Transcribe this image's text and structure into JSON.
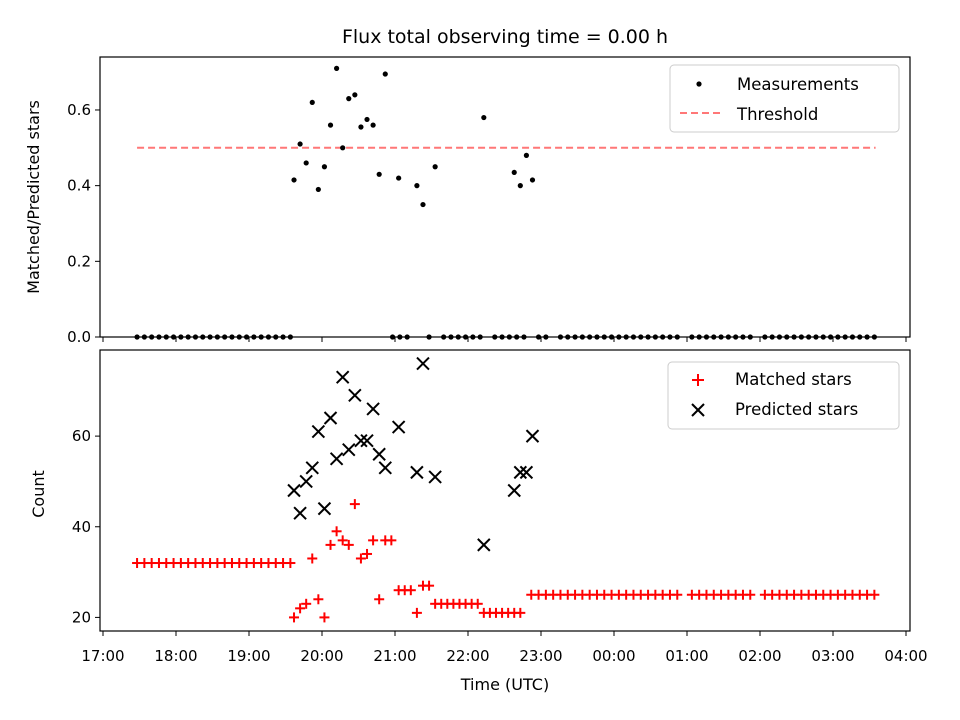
{
  "chart_data": {
    "title": "Flux total observing time = 0.00 h",
    "xlabel": "Time (UTC)",
    "x_tick_labels": [
      "17:00",
      "18:00",
      "19:00",
      "20:00",
      "21:00",
      "22:00",
      "23:00",
      "00:00",
      "01:00",
      "02:00",
      "03:00",
      "04:00"
    ],
    "colors": {
      "measurements": "#000000",
      "threshold": "#ff7777",
      "matched": "#ff0000",
      "predicted": "#000000"
    },
    "top": {
      "type": "scatter",
      "ylabel": "Matched/Predicted stars",
      "ylim": [
        0,
        0.74
      ],
      "y_ticks": [
        "0.0",
        "0.2",
        "0.4",
        "0.6"
      ],
      "legend": {
        "placement": "top-right",
        "entries": [
          "Measurements",
          "Threshold"
        ]
      },
      "threshold": {
        "value": 0.5,
        "x_start": "17:28",
        "x_end": "03:35"
      },
      "zero_times": [
        "17:28",
        "17:34",
        "17:40",
        "17:46",
        "17:52",
        "17:58",
        "18:04",
        "18:10",
        "18:16",
        "18:22",
        "18:28",
        "18:34",
        "18:40",
        "18:46",
        "18:52",
        "18:58",
        "19:04",
        "19:10",
        "19:16",
        "19:22",
        "19:28",
        "19:34",
        "20:58",
        "21:04",
        "21:10",
        "21:28",
        "21:40",
        "21:46",
        "21:52",
        "21:58",
        "22:04",
        "22:10",
        "22:22",
        "22:28",
        "22:34",
        "22:40",
        "22:46",
        "22:58",
        "23:04",
        "23:16",
        "23:22",
        "23:28",
        "23:34",
        "23:40",
        "23:46",
        "23:52",
        "23:58",
        "00:04",
        "00:10",
        "00:16",
        "00:22",
        "00:28",
        "00:34",
        "00:40",
        "00:46",
        "00:52",
        "01:04",
        "01:10",
        "01:16",
        "01:22",
        "01:28",
        "01:34",
        "01:40",
        "01:46",
        "01:52",
        "02:04",
        "02:10",
        "02:16",
        "02:22",
        "02:28",
        "02:34",
        "02:40",
        "02:46",
        "02:52",
        "02:58",
        "03:04",
        "03:10",
        "03:16",
        "03:22",
        "03:28",
        "03:34"
      ],
      "points": [
        {
          "t": "19:37",
          "v": 0.415
        },
        {
          "t": "19:42",
          "v": 0.51
        },
        {
          "t": "19:47",
          "v": 0.46
        },
        {
          "t": "19:52",
          "v": 0.62
        },
        {
          "t": "19:57",
          "v": 0.39
        },
        {
          "t": "20:02",
          "v": 0.45
        },
        {
          "t": "20:07",
          "v": 0.56
        },
        {
          "t": "20:12",
          "v": 0.71
        },
        {
          "t": "20:17",
          "v": 0.5
        },
        {
          "t": "20:22",
          "v": 0.63
        },
        {
          "t": "20:27",
          "v": 0.64
        },
        {
          "t": "20:32",
          "v": 0.555
        },
        {
          "t": "20:37",
          "v": 0.575
        },
        {
          "t": "20:42",
          "v": 0.56
        },
        {
          "t": "20:47",
          "v": 0.43
        },
        {
          "t": "20:52",
          "v": 0.695
        },
        {
          "t": "21:03",
          "v": 0.42
        },
        {
          "t": "21:18",
          "v": 0.4
        },
        {
          "t": "21:23",
          "v": 0.35
        },
        {
          "t": "21:33",
          "v": 0.45
        },
        {
          "t": "22:13",
          "v": 0.58
        },
        {
          "t": "22:38",
          "v": 0.435
        },
        {
          "t": "22:43",
          "v": 0.4
        },
        {
          "t": "22:48",
          "v": 0.48
        },
        {
          "t": "22:53",
          "v": 0.415
        }
      ]
    },
    "bottom": {
      "type": "scatter",
      "ylabel": "Count",
      "ylim": [
        17,
        79
      ],
      "y_ticks": [
        "20",
        "40",
        "60"
      ],
      "legend": {
        "placement": "top-right",
        "entries": [
          "Matched stars",
          "Predicted stars"
        ]
      },
      "predicted": [
        {
          "t": "19:37",
          "v": 48
        },
        {
          "t": "19:42",
          "v": 43
        },
        {
          "t": "19:47",
          "v": 50
        },
        {
          "t": "19:52",
          "v": 53
        },
        {
          "t": "19:57",
          "v": 61
        },
        {
          "t": "20:02",
          "v": 44
        },
        {
          "t": "20:07",
          "v": 64
        },
        {
          "t": "20:12",
          "v": 55
        },
        {
          "t": "20:17",
          "v": 73
        },
        {
          "t": "20:22",
          "v": 57
        },
        {
          "t": "20:27",
          "v": 69
        },
        {
          "t": "20:32",
          "v": 59
        },
        {
          "t": "20:37",
          "v": 59
        },
        {
          "t": "20:42",
          "v": 66
        },
        {
          "t": "20:47",
          "v": 56
        },
        {
          "t": "20:52",
          "v": 53
        },
        {
          "t": "21:03",
          "v": 62
        },
        {
          "t": "21:18",
          "v": 52
        },
        {
          "t": "21:23",
          "v": 76
        },
        {
          "t": "21:33",
          "v": 51
        },
        {
          "t": "22:13",
          "v": 36
        },
        {
          "t": "22:38",
          "v": 48
        },
        {
          "t": "22:43",
          "v": 52
        },
        {
          "t": "22:48",
          "v": 52
        },
        {
          "t": "22:53",
          "v": 60
        }
      ],
      "matched_points": [
        {
          "t": "19:37",
          "v": 20
        },
        {
          "t": "19:42",
          "v": 22
        },
        {
          "t": "19:47",
          "v": 23
        },
        {
          "t": "19:52",
          "v": 33
        },
        {
          "t": "19:57",
          "v": 24
        },
        {
          "t": "20:02",
          "v": 20
        },
        {
          "t": "20:07",
          "v": 36
        },
        {
          "t": "20:12",
          "v": 39
        },
        {
          "t": "20:17",
          "v": 37
        },
        {
          "t": "20:22",
          "v": 36
        },
        {
          "t": "20:27",
          "v": 45
        },
        {
          "t": "20:32",
          "v": 33
        },
        {
          "t": "20:37",
          "v": 34
        },
        {
          "t": "20:42",
          "v": 37
        },
        {
          "t": "20:47",
          "v": 24
        },
        {
          "t": "20:52",
          "v": 37
        },
        {
          "t": "20:57",
          "v": 37
        },
        {
          "t": "21:03",
          "v": 26
        },
        {
          "t": "21:08",
          "v": 26
        },
        {
          "t": "21:13",
          "v": 26
        },
        {
          "t": "21:18",
          "v": 21
        },
        {
          "t": "21:23",
          "v": 27
        },
        {
          "t": "21:28",
          "v": 27
        },
        {
          "t": "21:33",
          "v": 23
        },
        {
          "t": "21:38",
          "v": 23
        },
        {
          "t": "21:43",
          "v": 23
        },
        {
          "t": "21:48",
          "v": 23
        },
        {
          "t": "21:53",
          "v": 23
        },
        {
          "t": "21:58",
          "v": 23
        },
        {
          "t": "22:03",
          "v": 23
        },
        {
          "t": "22:08",
          "v": 23
        },
        {
          "t": "22:13",
          "v": 21
        },
        {
          "t": "22:18",
          "v": 21
        },
        {
          "t": "22:23",
          "v": 21
        },
        {
          "t": "22:28",
          "v": 21
        },
        {
          "t": "22:33",
          "v": 21
        },
        {
          "t": "22:38",
          "v": 21
        },
        {
          "t": "22:43",
          "v": 21
        }
      ],
      "matched_flat_32_times": [
        "17:28",
        "17:34",
        "17:40",
        "17:46",
        "17:52",
        "17:58",
        "18:04",
        "18:10",
        "18:16",
        "18:22",
        "18:28",
        "18:34",
        "18:40",
        "18:46",
        "18:52",
        "18:58",
        "19:04",
        "19:10",
        "19:16",
        "19:22",
        "19:28",
        "19:34"
      ],
      "matched_flat_25_times": [
        "22:52",
        "22:58",
        "23:04",
        "23:10",
        "23:16",
        "23:22",
        "23:28",
        "23:34",
        "23:40",
        "23:46",
        "23:52",
        "23:58",
        "00:04",
        "00:10",
        "00:16",
        "00:22",
        "00:28",
        "00:34",
        "00:40",
        "00:46",
        "00:52",
        "01:04",
        "01:10",
        "01:16",
        "01:22",
        "01:28",
        "01:34",
        "01:40",
        "01:46",
        "01:52",
        "02:04",
        "02:10",
        "02:16",
        "02:22",
        "02:28",
        "02:34",
        "02:40",
        "02:46",
        "02:52",
        "02:58",
        "03:04",
        "03:10",
        "03:16",
        "03:22",
        "03:28",
        "03:34"
      ]
    }
  }
}
